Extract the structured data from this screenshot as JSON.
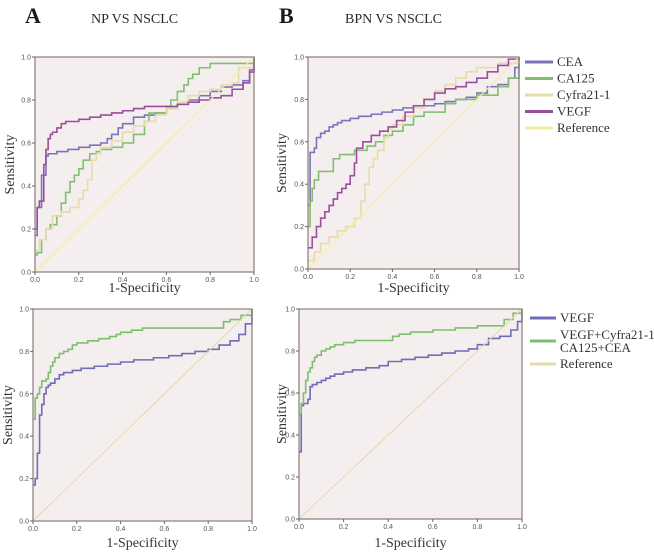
{
  "panels": {
    "A": {
      "letter": "A",
      "title": "NP VS NSCLC"
    },
    "B": {
      "letter": "B",
      "title": "BPN VS NSCLC"
    }
  },
  "colors": {
    "CEA": "#7b74bd",
    "CA125": "#80c070",
    "Cyfra21-1": "#e6dca8",
    "VEGF": "#9a4e9c",
    "Reference": "#f3ee9c",
    "Combined": "#7cc06c",
    "Reference2": "#e2dcae",
    "VEGF2": "#6f6cb8",
    "plot_bg": "#f5eeee",
    "frame": "#8a7c78"
  },
  "chart_data": [
    {
      "id": "A-top",
      "type": "line",
      "title": "NP VS NSCLC",
      "xlabel": "1-Specificity",
      "ylabel": "Sensitivity",
      "xlim": [
        0,
        1
      ],
      "ylim": [
        0,
        1
      ],
      "xticks": [
        "0.0",
        "0.2",
        "0.4",
        "0.6",
        "0.8",
        "1.0"
      ],
      "yticks": [
        "0.0",
        "0.2",
        "0.4",
        "0.6",
        "0.8",
        "1.0"
      ],
      "legend": [],
      "series": [
        {
          "name": "CEA",
          "color_key": "CEA",
          "step": true,
          "x": [
            0,
            0.01,
            0.01,
            0.03,
            0.03,
            0.05,
            0.05,
            0.06,
            0.1,
            0.15,
            0.2,
            0.25,
            0.3,
            0.33,
            0.35,
            0.38,
            0.4,
            0.45,
            0.5,
            0.55,
            0.6,
            0.65,
            0.7,
            0.75,
            0.8,
            0.85,
            0.9,
            0.95,
            0.98,
            1.0
          ],
          "y": [
            0.17,
            0.22,
            0.3,
            0.34,
            0.45,
            0.52,
            0.54,
            0.55,
            0.56,
            0.57,
            0.58,
            0.59,
            0.6,
            0.62,
            0.64,
            0.67,
            0.69,
            0.72,
            0.73,
            0.74,
            0.76,
            0.78,
            0.8,
            0.82,
            0.84,
            0.86,
            0.87,
            0.89,
            0.94,
            1.0
          ]
        },
        {
          "name": "CA125",
          "color_key": "CA125",
          "step": true,
          "x": [
            0,
            0.01,
            0.03,
            0.05,
            0.07,
            0.1,
            0.12,
            0.14,
            0.16,
            0.18,
            0.2,
            0.22,
            0.25,
            0.28,
            0.3,
            0.35,
            0.4,
            0.45,
            0.5,
            0.52,
            0.6,
            0.62,
            0.65,
            0.68,
            0.7,
            0.72,
            0.75,
            0.8,
            0.9,
            1.0
          ],
          "y": [
            0.08,
            0.09,
            0.15,
            0.2,
            0.22,
            0.26,
            0.32,
            0.37,
            0.42,
            0.45,
            0.48,
            0.52,
            0.55,
            0.56,
            0.57,
            0.58,
            0.6,
            0.64,
            0.7,
            0.74,
            0.77,
            0.8,
            0.84,
            0.87,
            0.9,
            0.92,
            0.95,
            0.97,
            0.97,
            1.0
          ]
        },
        {
          "name": "Cyfra21-1",
          "color_key": "Cyfra21-1",
          "step": true,
          "x": [
            0,
            0.02,
            0.05,
            0.08,
            0.12,
            0.16,
            0.2,
            0.22,
            0.24,
            0.26,
            0.28,
            0.3,
            0.35,
            0.4,
            0.45,
            0.5,
            0.55,
            0.6,
            0.65,
            0.7,
            0.75,
            0.8,
            0.85,
            0.9,
            0.93,
            1.0
          ],
          "y": [
            0.1,
            0.15,
            0.2,
            0.26,
            0.28,
            0.3,
            0.34,
            0.38,
            0.43,
            0.52,
            0.55,
            0.58,
            0.61,
            0.65,
            0.68,
            0.7,
            0.73,
            0.76,
            0.79,
            0.82,
            0.84,
            0.85,
            0.87,
            0.88,
            0.95,
            1.0
          ]
        },
        {
          "name": "VEGF",
          "color_key": "VEGF",
          "step": true,
          "x": [
            0,
            0.01,
            0.02,
            0.04,
            0.05,
            0.06,
            0.07,
            0.08,
            0.1,
            0.12,
            0.14,
            0.2,
            0.25,
            0.3,
            0.35,
            0.4,
            0.45,
            0.5,
            0.6,
            0.65,
            0.7,
            0.75,
            0.8,
            0.85,
            0.9,
            0.95,
            0.98,
            1.0
          ],
          "y": [
            0.2,
            0.3,
            0.33,
            0.5,
            0.57,
            0.62,
            0.64,
            0.65,
            0.67,
            0.69,
            0.7,
            0.71,
            0.72,
            0.73,
            0.74,
            0.75,
            0.76,
            0.77,
            0.77,
            0.78,
            0.79,
            0.8,
            0.81,
            0.82,
            0.85,
            0.88,
            0.93,
            1.0
          ]
        },
        {
          "name": "Reference",
          "color_key": "Reference",
          "step": false,
          "x": [
            0,
            1
          ],
          "y": [
            0,
            1
          ]
        }
      ]
    },
    {
      "id": "B-top",
      "type": "line",
      "title": "BPN VS NSCLC",
      "xlabel": "1-Specificity",
      "ylabel": "Sensitivity",
      "xlim": [
        0,
        1
      ],
      "ylim": [
        0,
        1
      ],
      "xticks": [
        "0.0",
        "0.2",
        "0.4",
        "0.6",
        "0.8",
        "1.0"
      ],
      "yticks": [
        "0.0",
        "0.2",
        "0.4",
        "0.6",
        "0.8",
        "1.0"
      ],
      "legend": [
        "CEA",
        "CA125",
        "Cyfra21-1",
        "VEGF",
        "Reference"
      ],
      "legend_position": "right",
      "series": [
        {
          "name": "CEA",
          "color_key": "CEA",
          "step": true,
          "x": [
            0,
            0.01,
            0.03,
            0.04,
            0.06,
            0.08,
            0.1,
            0.12,
            0.14,
            0.16,
            0.2,
            0.24,
            0.3,
            0.35,
            0.4,
            0.45,
            0.5,
            0.55,
            0.6,
            0.65,
            0.7,
            0.75,
            0.8,
            0.85,
            0.9,
            0.95,
            0.98,
            1.0
          ],
          "y": [
            0.3,
            0.55,
            0.57,
            0.62,
            0.64,
            0.65,
            0.67,
            0.68,
            0.69,
            0.7,
            0.71,
            0.72,
            0.73,
            0.74,
            0.75,
            0.76,
            0.77,
            0.77,
            0.78,
            0.79,
            0.8,
            0.81,
            0.83,
            0.86,
            0.87,
            0.9,
            0.95,
            1.0
          ]
        },
        {
          "name": "CA125",
          "color_key": "CA125",
          "step": true,
          "x": [
            0,
            0.01,
            0.02,
            0.03,
            0.05,
            0.08,
            0.12,
            0.15,
            0.22,
            0.28,
            0.32,
            0.36,
            0.4,
            0.45,
            0.5,
            0.55,
            0.6,
            0.65,
            0.7,
            0.8,
            0.9,
            0.95,
            1.0
          ],
          "y": [
            0.2,
            0.32,
            0.38,
            0.42,
            0.46,
            0.46,
            0.52,
            0.54,
            0.56,
            0.58,
            0.6,
            0.63,
            0.65,
            0.68,
            0.72,
            0.74,
            0.74,
            0.78,
            0.8,
            0.82,
            0.86,
            0.9,
            1.0
          ]
        },
        {
          "name": "Cyfra21-1",
          "color_key": "Cyfra21-1",
          "step": true,
          "x": [
            0,
            0.03,
            0.06,
            0.1,
            0.14,
            0.18,
            0.22,
            0.25,
            0.27,
            0.29,
            0.31,
            0.33,
            0.36,
            0.38,
            0.4,
            0.45,
            0.5,
            0.55,
            0.6,
            0.65,
            0.7,
            0.75,
            0.8,
            0.9,
            1.0
          ],
          "y": [
            0.04,
            0.08,
            0.12,
            0.15,
            0.18,
            0.2,
            0.24,
            0.32,
            0.4,
            0.48,
            0.52,
            0.56,
            0.62,
            0.66,
            0.68,
            0.72,
            0.76,
            0.8,
            0.84,
            0.87,
            0.9,
            0.93,
            0.95,
            0.97,
            1.0
          ]
        },
        {
          "name": "VEGF",
          "color_key": "VEGF",
          "step": true,
          "x": [
            0,
            0.02,
            0.04,
            0.06,
            0.08,
            0.1,
            0.12,
            0.14,
            0.16,
            0.18,
            0.2,
            0.22,
            0.23,
            0.26,
            0.3,
            0.34,
            0.38,
            0.42,
            0.46,
            0.5,
            0.55,
            0.6,
            0.65,
            0.7,
            0.75,
            0.8,
            0.85,
            0.9,
            0.95,
            1.0
          ],
          "y": [
            0.1,
            0.15,
            0.2,
            0.24,
            0.27,
            0.3,
            0.33,
            0.36,
            0.38,
            0.4,
            0.44,
            0.5,
            0.57,
            0.6,
            0.63,
            0.65,
            0.67,
            0.7,
            0.74,
            0.77,
            0.8,
            0.83,
            0.85,
            0.86,
            0.88,
            0.9,
            0.93,
            0.96,
            0.99,
            1.0
          ]
        },
        {
          "name": "Reference",
          "color_key": "Reference",
          "step": false,
          "x": [
            0,
            1
          ],
          "y": [
            0,
            1
          ]
        }
      ]
    },
    {
      "id": "A-bottom",
      "type": "line",
      "title": "",
      "xlabel": "1-Specificity",
      "ylabel": "Sensitivity",
      "xlim": [
        0,
        1
      ],
      "ylim": [
        0,
        1
      ],
      "xticks": [
        "0.0",
        "0.2",
        "0.4",
        "0.6",
        "0.8",
        "1.0"
      ],
      "yticks": [
        "0.0",
        "0.2",
        "0.4",
        "0.6",
        "0.8",
        "1.0"
      ],
      "legend": [],
      "series": [
        {
          "name": "VEGF",
          "color_key": "VEGF2",
          "step": true,
          "x": [
            0,
            0.01,
            0.02,
            0.03,
            0.04,
            0.05,
            0.06,
            0.07,
            0.08,
            0.1,
            0.12,
            0.14,
            0.18,
            0.22,
            0.28,
            0.34,
            0.4,
            0.46,
            0.55,
            0.62,
            0.68,
            0.74,
            0.8,
            0.85,
            0.9,
            0.94,
            0.97,
            1.0
          ],
          "y": [
            0.17,
            0.2,
            0.32,
            0.5,
            0.55,
            0.6,
            0.63,
            0.64,
            0.65,
            0.67,
            0.69,
            0.7,
            0.71,
            0.72,
            0.73,
            0.74,
            0.75,
            0.76,
            0.77,
            0.78,
            0.79,
            0.8,
            0.81,
            0.83,
            0.85,
            0.88,
            0.93,
            1.0
          ]
        },
        {
          "name": "VEGF+Cyfra21-1+CA125+CEA",
          "color_key": "Combined",
          "step": true,
          "x": [
            0,
            0.01,
            0.02,
            0.03,
            0.04,
            0.06,
            0.07,
            0.08,
            0.09,
            0.1,
            0.12,
            0.14,
            0.16,
            0.18,
            0.2,
            0.25,
            0.3,
            0.35,
            0.38,
            0.4,
            0.45,
            0.5,
            0.6,
            0.7,
            0.8,
            0.87,
            0.9,
            0.95,
            1.0
          ],
          "y": [
            0.48,
            0.58,
            0.6,
            0.63,
            0.66,
            0.67,
            0.7,
            0.73,
            0.75,
            0.77,
            0.79,
            0.8,
            0.81,
            0.83,
            0.84,
            0.85,
            0.86,
            0.87,
            0.88,
            0.89,
            0.9,
            0.91,
            0.91,
            0.91,
            0.91,
            0.94,
            0.95,
            0.97,
            1.0
          ]
        },
        {
          "name": "Reference",
          "color_key": "Reference2",
          "step": false,
          "x": [
            0,
            1
          ],
          "y": [
            0,
            1
          ]
        }
      ]
    },
    {
      "id": "B-bottom",
      "type": "line",
      "title": "",
      "xlabel": "1-Specificity",
      "ylabel": "Sensitivity",
      "xlim": [
        0,
        1
      ],
      "ylim": [
        0,
        1
      ],
      "xticks": [
        "0.0",
        "0.2",
        "0.4",
        "0.6",
        "0.8",
        "1.0"
      ],
      "yticks": [
        "0.0",
        "0.2",
        "0.4",
        "0.6",
        "0.8",
        "1.0"
      ],
      "legend": [
        "VEGF",
        "VEGF+Cyfra21-1+ CA125+CEA",
        "Reference"
      ],
      "legend_position": "right",
      "series": [
        {
          "name": "VEGF",
          "color_key": "VEGF2",
          "step": true,
          "x": [
            0,
            0.01,
            0.02,
            0.04,
            0.05,
            0.06,
            0.08,
            0.1,
            0.12,
            0.14,
            0.16,
            0.2,
            0.24,
            0.3,
            0.36,
            0.4,
            0.46,
            0.52,
            0.58,
            0.64,
            0.7,
            0.76,
            0.8,
            0.85,
            0.9,
            0.95,
            0.98,
            1.0
          ],
          "y": [
            0.32,
            0.54,
            0.55,
            0.57,
            0.63,
            0.64,
            0.65,
            0.66,
            0.67,
            0.68,
            0.69,
            0.7,
            0.71,
            0.72,
            0.73,
            0.75,
            0.76,
            0.77,
            0.78,
            0.79,
            0.8,
            0.81,
            0.83,
            0.86,
            0.87,
            0.9,
            0.94,
            1.0
          ]
        },
        {
          "name": "VEGF+Cyfra21-1+CA125+CEA",
          "color_key": "Combined",
          "step": true,
          "x": [
            0,
            0.01,
            0.02,
            0.03,
            0.04,
            0.05,
            0.06,
            0.07,
            0.08,
            0.1,
            0.12,
            0.14,
            0.16,
            0.2,
            0.25,
            0.3,
            0.4,
            0.42,
            0.45,
            0.5,
            0.6,
            0.7,
            0.8,
            0.88,
            0.92,
            0.96,
            1.0
          ],
          "y": [
            0.5,
            0.55,
            0.6,
            0.66,
            0.7,
            0.72,
            0.75,
            0.77,
            0.78,
            0.8,
            0.81,
            0.82,
            0.83,
            0.84,
            0.85,
            0.85,
            0.85,
            0.87,
            0.88,
            0.89,
            0.9,
            0.91,
            0.92,
            0.92,
            0.95,
            0.98,
            1.0
          ]
        },
        {
          "name": "Reference",
          "color_key": "Reference2",
          "step": false,
          "x": [
            0,
            1
          ],
          "y": [
            0,
            1
          ]
        }
      ]
    }
  ],
  "legends": {
    "B-top": [
      {
        "label": "CEA",
        "color_key": "CEA"
      },
      {
        "label": "CA125",
        "color_key": "CA125"
      },
      {
        "label": "Cyfra21-1",
        "color_key": "Cyfra21-1"
      },
      {
        "label": "VEGF",
        "color_key": "VEGF"
      },
      {
        "label": "Reference",
        "color_key": "Reference"
      }
    ],
    "B-bottom": [
      {
        "label": "VEGF",
        "label2": "",
        "color_key": "VEGF2"
      },
      {
        "label": "VEGF+Cyfra21-1+",
        "label2": "CA125+CEA",
        "color_key": "Combined"
      },
      {
        "label": "Reference",
        "label2": "",
        "color_key": "Reference2"
      }
    ]
  }
}
